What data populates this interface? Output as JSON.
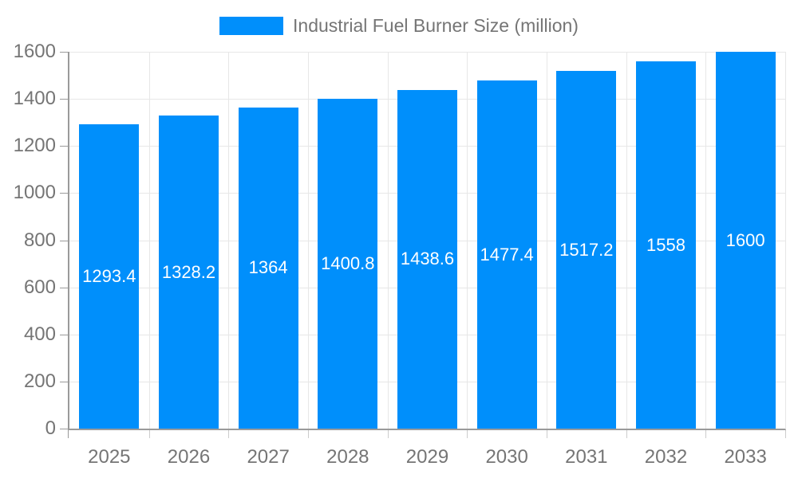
{
  "chart_data": {
    "type": "bar",
    "title": "Industrial Fuel Burner Size (million)",
    "categories": [
      "2025",
      "2026",
      "2027",
      "2028",
      "2029",
      "2030",
      "2031",
      "2032",
      "2033"
    ],
    "values": [
      1293.4,
      1328.2,
      1364,
      1400.8,
      1438.6,
      1477.4,
      1517.2,
      1558,
      1600
    ],
    "value_labels": [
      "1293.4",
      "1328.2",
      "1364",
      "1400.8",
      "1438.6",
      "1477.4",
      "1517.2",
      "1558",
      "1600"
    ],
    "xlabel": "",
    "ylabel": "",
    "ylim": [
      0,
      1600
    ],
    "yticks": [
      0,
      200,
      400,
      600,
      800,
      1000,
      1200,
      1400,
      1600
    ],
    "grid": true,
    "legend_position": "top",
    "legend": {
      "entries": [
        {
          "label": "Industrial Fuel Burner Size (million)",
          "color": "#008FFB"
        }
      ]
    },
    "colors": {
      "bar": "#008FFB",
      "bar_value_label": "#ffffff",
      "axis_text": "#757575",
      "grid_line": "#e7e7e7",
      "axis_line": "#9a9a9a"
    }
  }
}
